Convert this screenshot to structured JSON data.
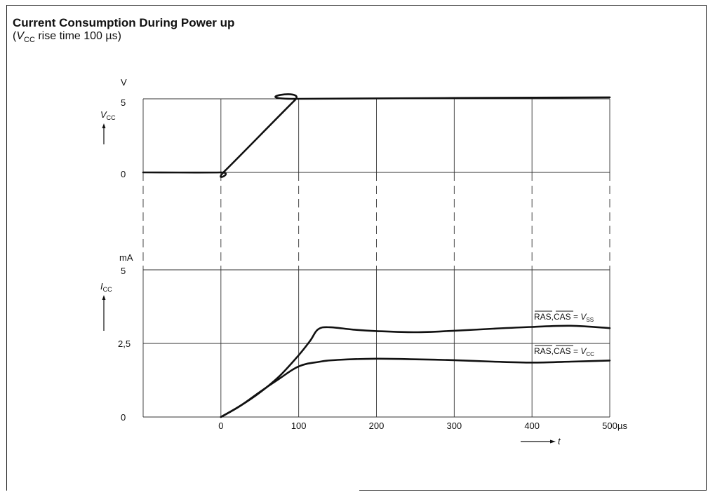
{
  "title": "Current Consumption During Power up",
  "subtitle": {
    "open": "(",
    "symbol": "V",
    "symbol_sub": "CC",
    "rest": " rise time 100 µs)"
  },
  "chart_data": [
    {
      "type": "line",
      "panel": "top",
      "ylabel": "V",
      "ylabel_symbol": "V",
      "ylabel_sub": "CC",
      "yticks": [
        "0",
        "5"
      ],
      "ylim": [
        0,
        5
      ],
      "xlim": [
        -100,
        500
      ],
      "x_gridlines": [
        -100,
        0,
        100,
        200,
        300,
        400,
        500
      ],
      "series": [
        {
          "x": [
            -100,
            0,
            5,
            95,
            100,
            500
          ],
          "y": [
            0,
            0,
            0.1,
            4.9,
            5,
            5.1
          ]
        }
      ]
    },
    {
      "type": "line",
      "panel": "bottom",
      "ylabel": "mA",
      "ylabel_symbol": "I",
      "ylabel_sub": "CC",
      "yticks": [
        "0",
        "2,5",
        "5"
      ],
      "ylim": [
        0,
        5
      ],
      "xlim": [
        -100,
        500
      ],
      "xticks": [
        "0",
        "100",
        "200",
        "300",
        "400",
        "500"
      ],
      "xtick_values": [
        0,
        100,
        200,
        300,
        400,
        500
      ],
      "xunit": "µs",
      "xlabel": "t",
      "x_gridlines": [
        -100,
        0,
        100,
        200,
        300,
        400,
        500
      ],
      "series": [
        {
          "name": "RAS,CAS = VSS",
          "label_main": "RAS,CAS",
          "label_eq": " = ",
          "label_symbol": "V",
          "label_sub": "SS",
          "x": [
            0,
            25,
            50,
            75,
            100,
            115,
            125,
            140,
            170,
            200,
            250,
            300,
            350,
            400,
            450,
            500
          ],
          "y": [
            0,
            0.38,
            0.83,
            1.38,
            2.1,
            2.6,
            2.98,
            3.05,
            2.97,
            2.92,
            2.88,
            2.93,
            3.0,
            3.06,
            3.1,
            3.02
          ]
        },
        {
          "name": "RAS,CAS = VCC",
          "label_main": "RAS,CAS",
          "label_eq": " = ",
          "label_symbol": "V",
          "label_sub": "CC",
          "x": [
            0,
            25,
            50,
            75,
            100,
            125,
            150,
            200,
            250,
            300,
            350,
            400,
            450,
            500
          ],
          "y": [
            0,
            0.38,
            0.85,
            1.3,
            1.72,
            1.87,
            1.94,
            1.98,
            1.96,
            1.93,
            1.88,
            1.85,
            1.88,
            1.92
          ]
        }
      ]
    }
  ]
}
